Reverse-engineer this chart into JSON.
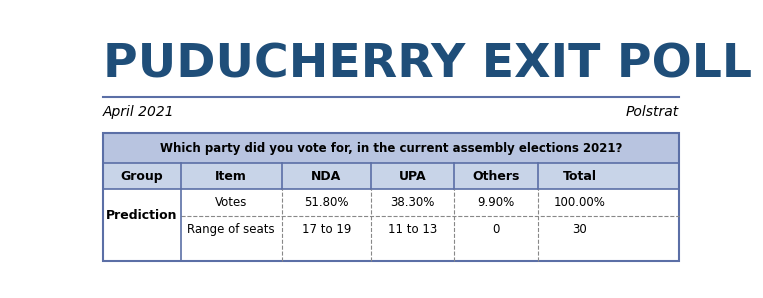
{
  "title": "PUDUCHERRY EXIT POLL",
  "title_color": "#1F4E79",
  "subtitle_left": "April 2021",
  "subtitle_right": "Polstrat",
  "subtitle_color": "#000000",
  "question": "Which party did you vote for, in the current assembly elections 2021?",
  "question_bg": "#B8C4E0",
  "header_bg": "#C8D4E8",
  "col_headers": [
    "Group",
    "Item",
    "NDA",
    "UPA",
    "Others",
    "Total"
  ],
  "row1_label": "Prediction",
  "row1_item": "Votes",
  "row1_data": [
    "51.80%",
    "38.30%",
    "9.90%",
    "100.00%"
  ],
  "row2_item": "Range of seats",
  "row2_data": [
    "17 to 19",
    "11 to 13",
    "0",
    "30"
  ],
  "bg_color": "#FFFFFF",
  "table_border_color": "#5B6FA6",
  "line_color": "#888888",
  "separator_line_color": "#5B6FA6"
}
